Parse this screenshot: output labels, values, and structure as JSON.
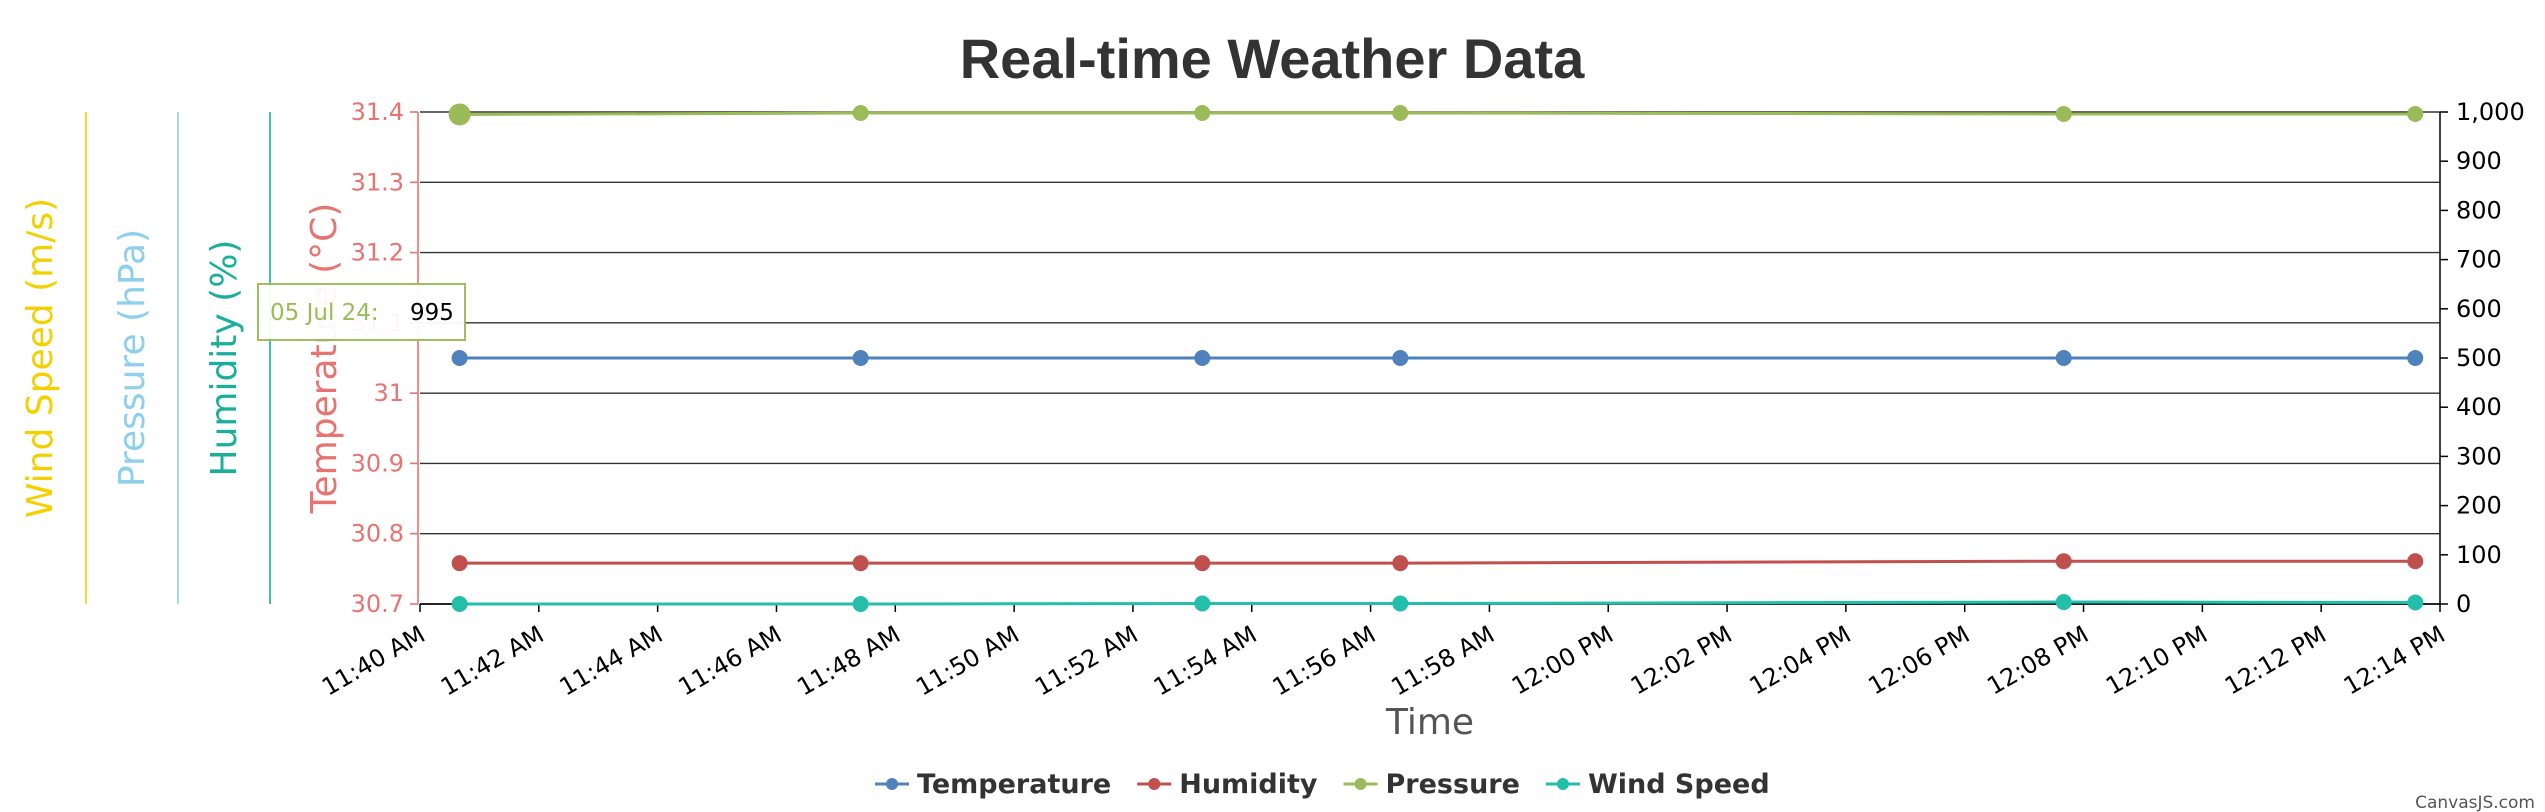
{
  "chart_data": {
    "type": "line",
    "title": "Real-time Weather Data",
    "xlabel": "Time",
    "x_ticks": [
      "11:40 AM",
      "11:42 AM",
      "11:44 AM",
      "11:46 AM",
      "11:48 AM",
      "11:50 AM",
      "11:52 AM",
      "11:54 AM",
      "11:56 AM",
      "11:58 AM",
      "12:00 PM",
      "12:02 PM",
      "12:04 PM",
      "12:06 PM",
      "12:08 PM",
      "12:10 PM",
      "12:12 PM",
      "12:14 PM"
    ],
    "x": [
      "11:40:40",
      "11:47:25",
      "11:53:10",
      "11:56:30",
      "12:07:40",
      "12:13:35"
    ],
    "xlim": [
      "11:40",
      "12:14"
    ],
    "y_left_axes": [
      {
        "title": "Temperature (°C)",
        "color": "#E77471",
        "ticks": [
          "30.7",
          "30.8",
          "30.9",
          "31",
          "31.1",
          "31.2",
          "31.3",
          "31.4"
        ],
        "range": [
          30.7,
          31.4
        ]
      },
      {
        "title": "Humidity (%)",
        "color": "#1AAF9A",
        "ticks": [],
        "range": [
          0,
          100
        ]
      },
      {
        "title": "Pressure (hPa)",
        "color": "#8ED0EC",
        "ticks": [],
        "range": [
          0,
          1000
        ]
      },
      {
        "title": "Wind Speed (m/s)",
        "color": "#F5D000",
        "ticks": [],
        "range": [
          0,
          100
        ]
      }
    ],
    "y_right_axis": {
      "ticks": [
        "0",
        "100",
        "200",
        "300",
        "400",
        "500",
        "600",
        "700",
        "800",
        "900",
        "1,000"
      ],
      "range": [
        0,
        1000
      ]
    },
    "series": [
      {
        "name": "Temperature",
        "color": "#4F81BC",
        "axis": "left",
        "values": [
          500,
          500,
          500,
          500,
          500,
          500
        ]
      },
      {
        "name": "Humidity",
        "color": "#C0504E",
        "axis": "left",
        "values": [
          83,
          83,
          83,
          83,
          87,
          87
        ]
      },
      {
        "name": "Pressure",
        "color": "#9BBB58",
        "axis": "left",
        "values": [
          995,
          998,
          998,
          998,
          996,
          996
        ]
      },
      {
        "name": "Wind Speed",
        "color": "#23BFAA",
        "axis": "left",
        "values": [
          0,
          0,
          1,
          1,
          4,
          3
        ]
      }
    ],
    "grid": true,
    "legend_position": "bottom",
    "tooltip": {
      "label": "05 Jul 24:",
      "value": "995",
      "color": "#9BBB58"
    },
    "credit": "CanvasJS.com"
  }
}
